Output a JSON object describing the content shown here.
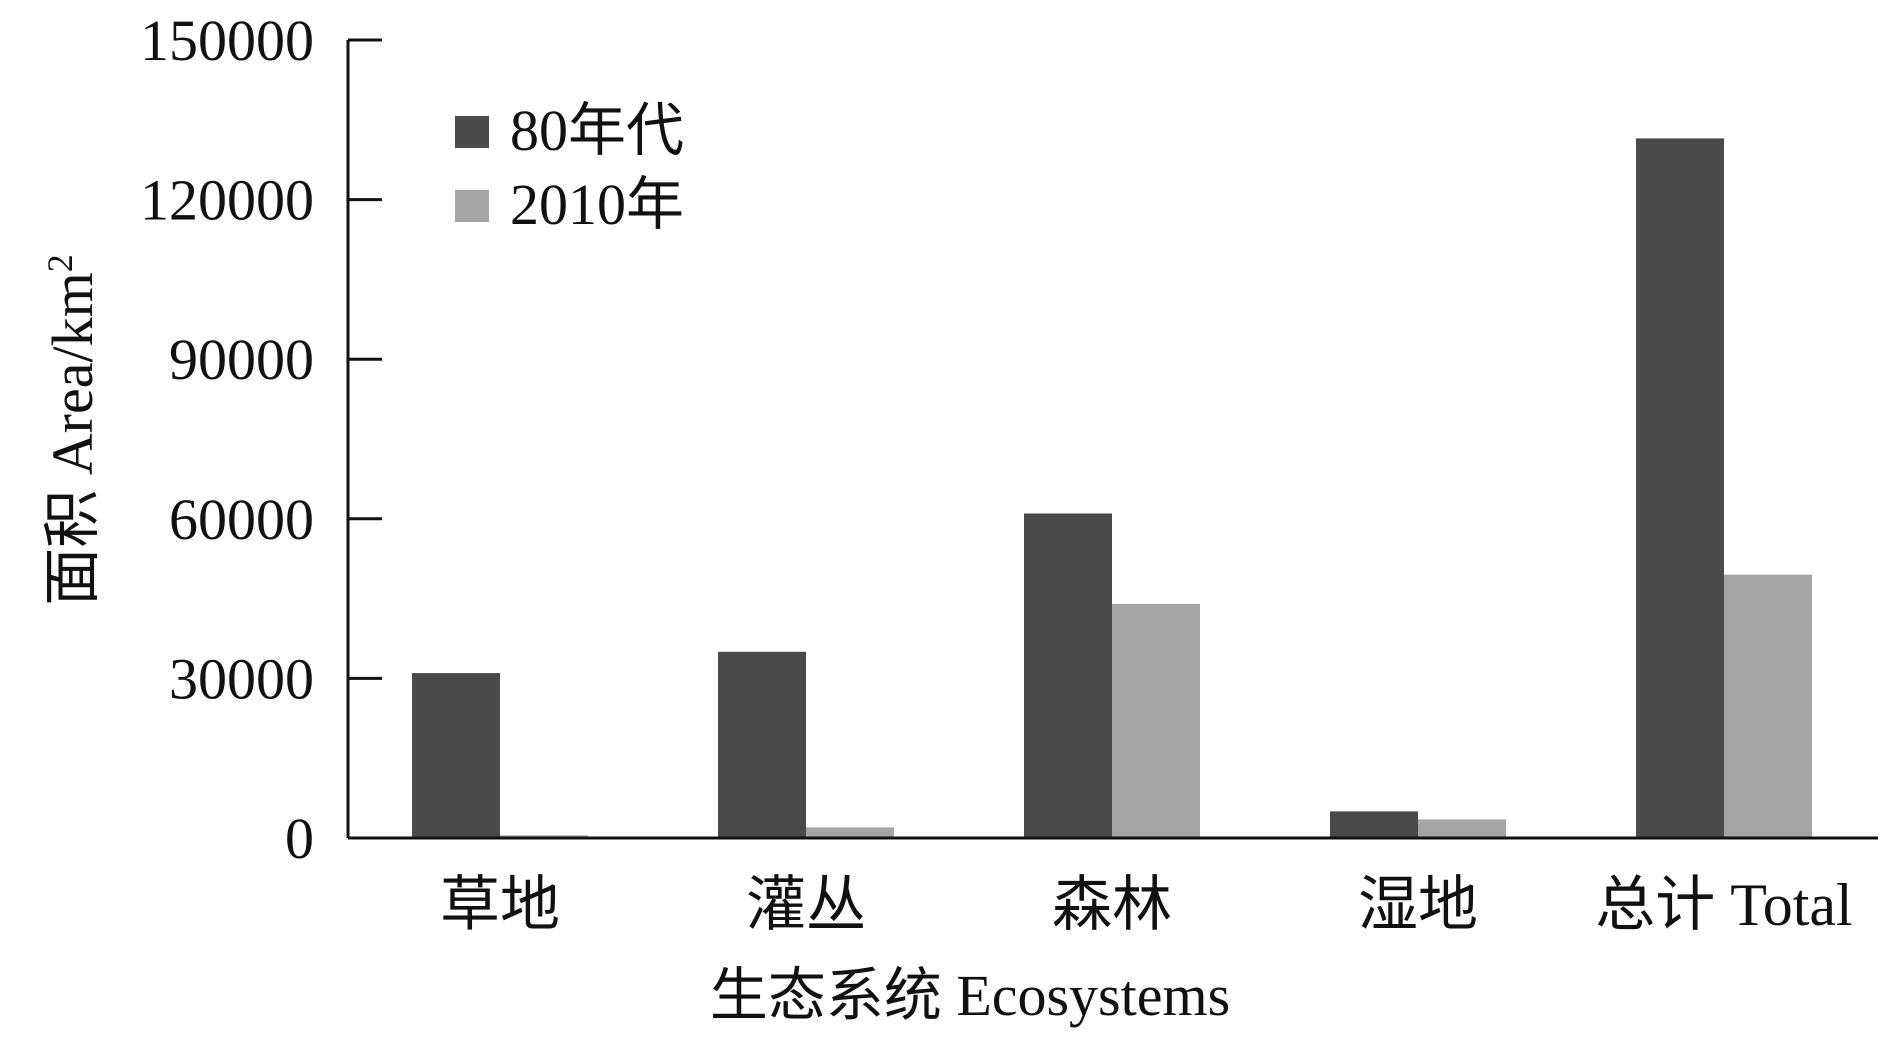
{
  "chart_data": {
    "type": "bar",
    "xlabel": "生态系统 Ecosystems",
    "ylabel": "面积 Area/km",
    "ylabel_sup": "2",
    "categories": [
      "草地",
      "灌丛",
      "森林",
      "湿地",
      "总计 Total"
    ],
    "series": [
      {
        "name": "80年代",
        "color": "#4a4a4a",
        "values": [
          31000,
          35000,
          61000,
          5000,
          131500
        ]
      },
      {
        "name": "2010年",
        "color": "#a5a5a5",
        "values": [
          500,
          2000,
          44000,
          3500,
          49500
        ]
      }
    ],
    "ylim": [
      0,
      150000
    ],
    "yticks": [
      0,
      30000,
      60000,
      90000,
      120000,
      150000
    ],
    "legend_position": "top-left",
    "grid": false
  }
}
